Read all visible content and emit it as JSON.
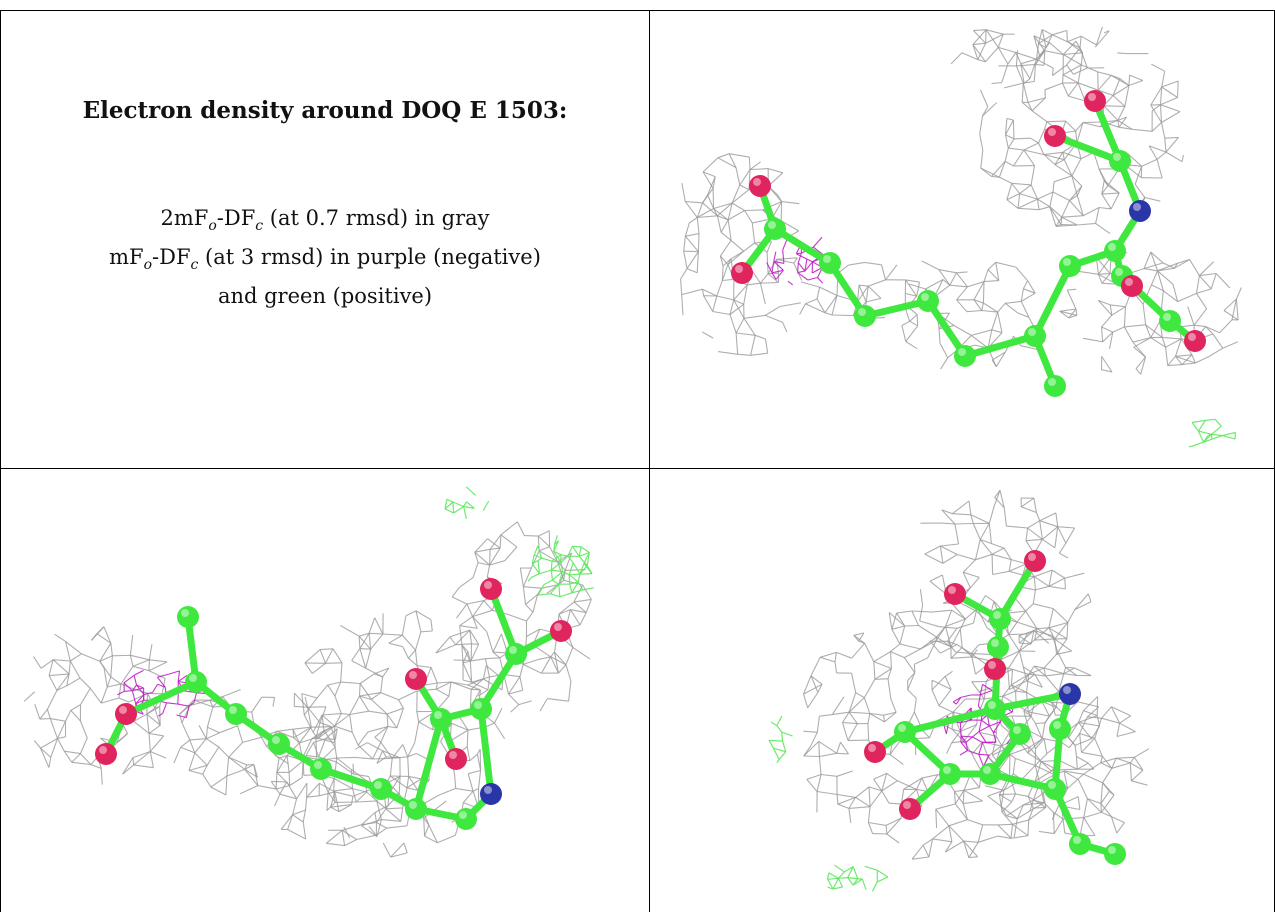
{
  "caption": {
    "title": "Electron density around DOQ E 1503:",
    "lines": [
      {
        "parts": [
          "2mF",
          "o",
          "-DF",
          "c",
          " (at 0.7 rmsd) in gray"
        ]
      },
      {
        "parts": [
          "mF",
          "o",
          "-DF",
          "c",
          " (at 3 rmsd) in purple (negative)"
        ]
      },
      {
        "parts": [
          "and green (positive)",
          "",
          "",
          "",
          ""
        ]
      }
    ]
  },
  "colors": {
    "mesh_2fofc": "#9a9a9a",
    "mesh_negative": "#c020c8",
    "mesh_positive": "#5ee85e",
    "carbon": "#3ee83e",
    "oxygen": "#e0245e",
    "nitrogen": "#2a36a8"
  },
  "panels": [
    {
      "id": "top-right",
      "view": "view-1"
    },
    {
      "id": "bottom-left",
      "view": "view-2"
    },
    {
      "id": "bottom-right",
      "view": "view-3"
    }
  ]
}
